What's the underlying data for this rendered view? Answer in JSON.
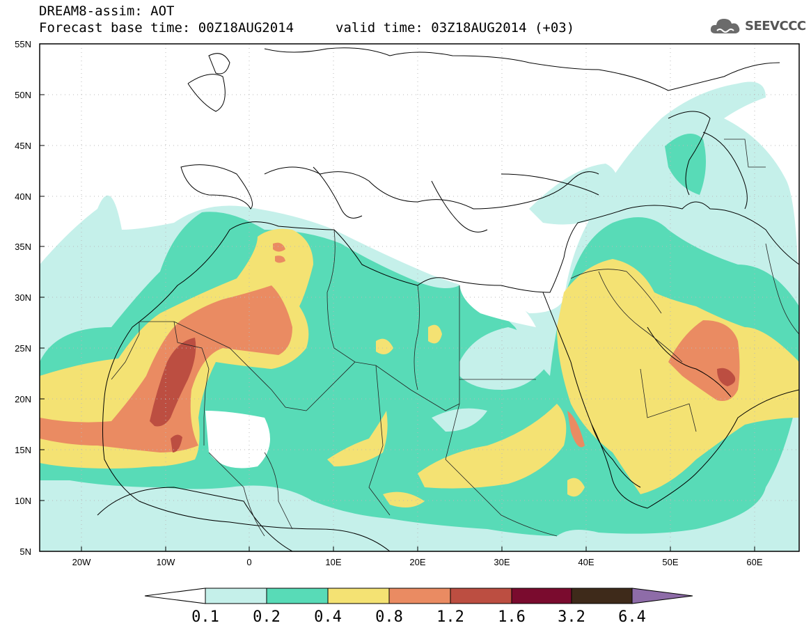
{
  "title": {
    "line1": "DREAM8-assim: AOT",
    "line2": "Forecast base time: 00Z18AUG2014",
    "valid": "valid time: 03Z18AUG2014 (+03)"
  },
  "logo": {
    "text": "SEEVCCC",
    "icon": "cloud-icon"
  },
  "map": {
    "projection": "lat-lon",
    "lon_range": [
      -25,
      65
    ],
    "lat_range": [
      5,
      55
    ],
    "lon_ticks": [
      "20W",
      "10W",
      "0",
      "10E",
      "20E",
      "30E",
      "40E",
      "50E",
      "60E"
    ],
    "lat_ticks": [
      "5N",
      "10N",
      "15N",
      "20N",
      "25N",
      "30N",
      "35N",
      "40N",
      "45N",
      "50N",
      "55N"
    ],
    "gridlines": true
  },
  "colorbar": {
    "levels": [
      "0.1",
      "0.2",
      "0.4",
      "0.8",
      "1.2",
      "1.6",
      "3.2",
      "6.4"
    ],
    "colors": [
      "#ffffff",
      "#c5f0ea",
      "#58dbb7",
      "#f4e273",
      "#ea8b62",
      "#bc4e41",
      "#7a0b2e",
      "#3e2a1a",
      "#8e6ca8"
    ]
  }
}
